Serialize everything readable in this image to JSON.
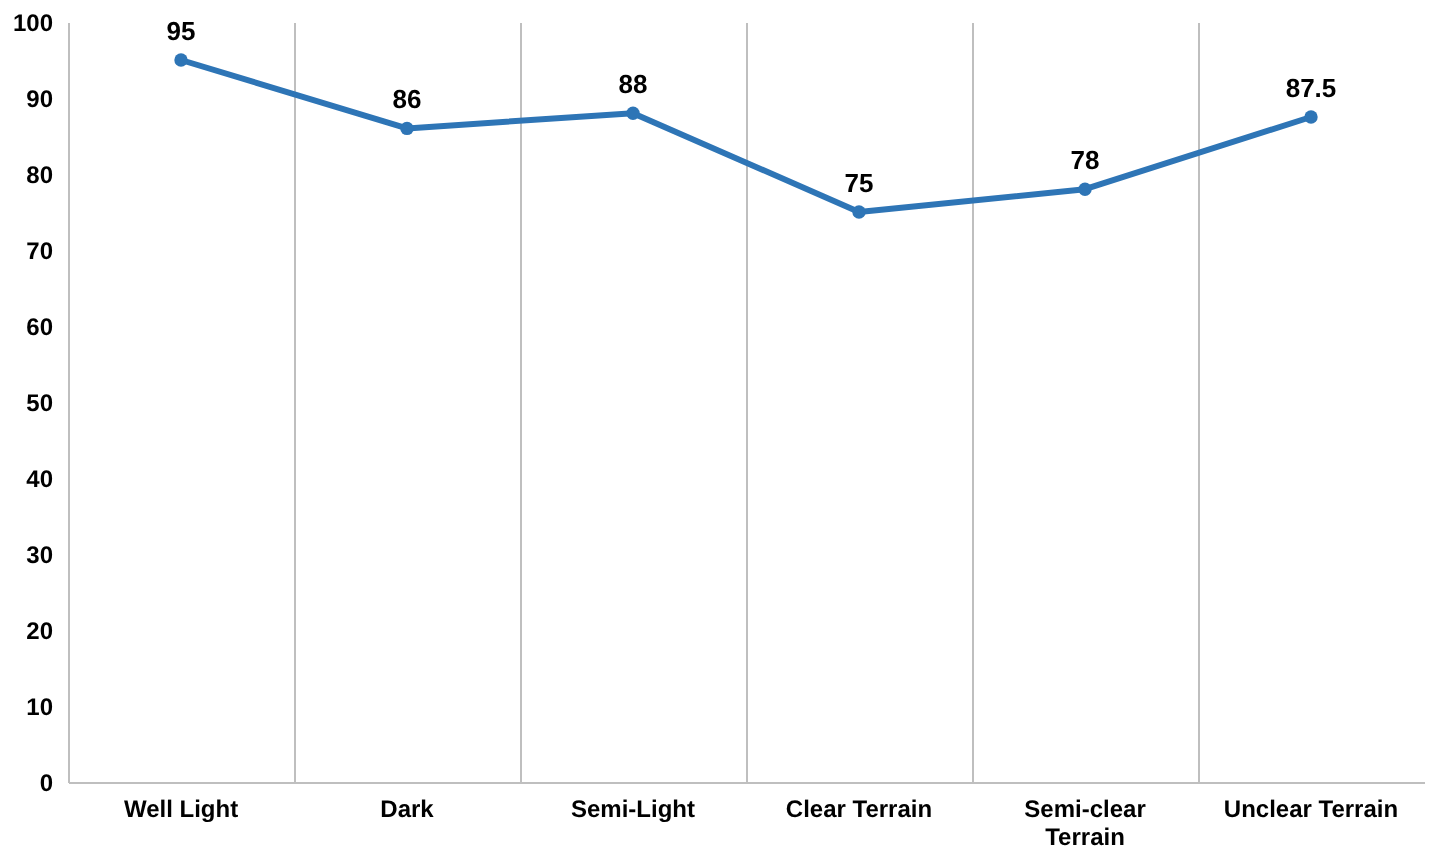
{
  "chart_data": {
    "type": "line",
    "categories": [
      "Well Light",
      "Dark",
      "Semi-Light",
      "Clear Terrain",
      "Semi-clear Terrain",
      "Unclear Terrain"
    ],
    "series": [
      {
        "color": "#2e75b6",
        "values": [
          95,
          86,
          88,
          75,
          78,
          87.5
        ]
      }
    ],
    "ylim": [
      0,
      100
    ],
    "yticks": [
      0,
      10,
      20,
      30,
      40,
      50,
      60,
      70,
      80,
      90,
      100
    ],
    "grid": "x",
    "marker": "circle",
    "line_style": "solid",
    "data_labels": true
  }
}
